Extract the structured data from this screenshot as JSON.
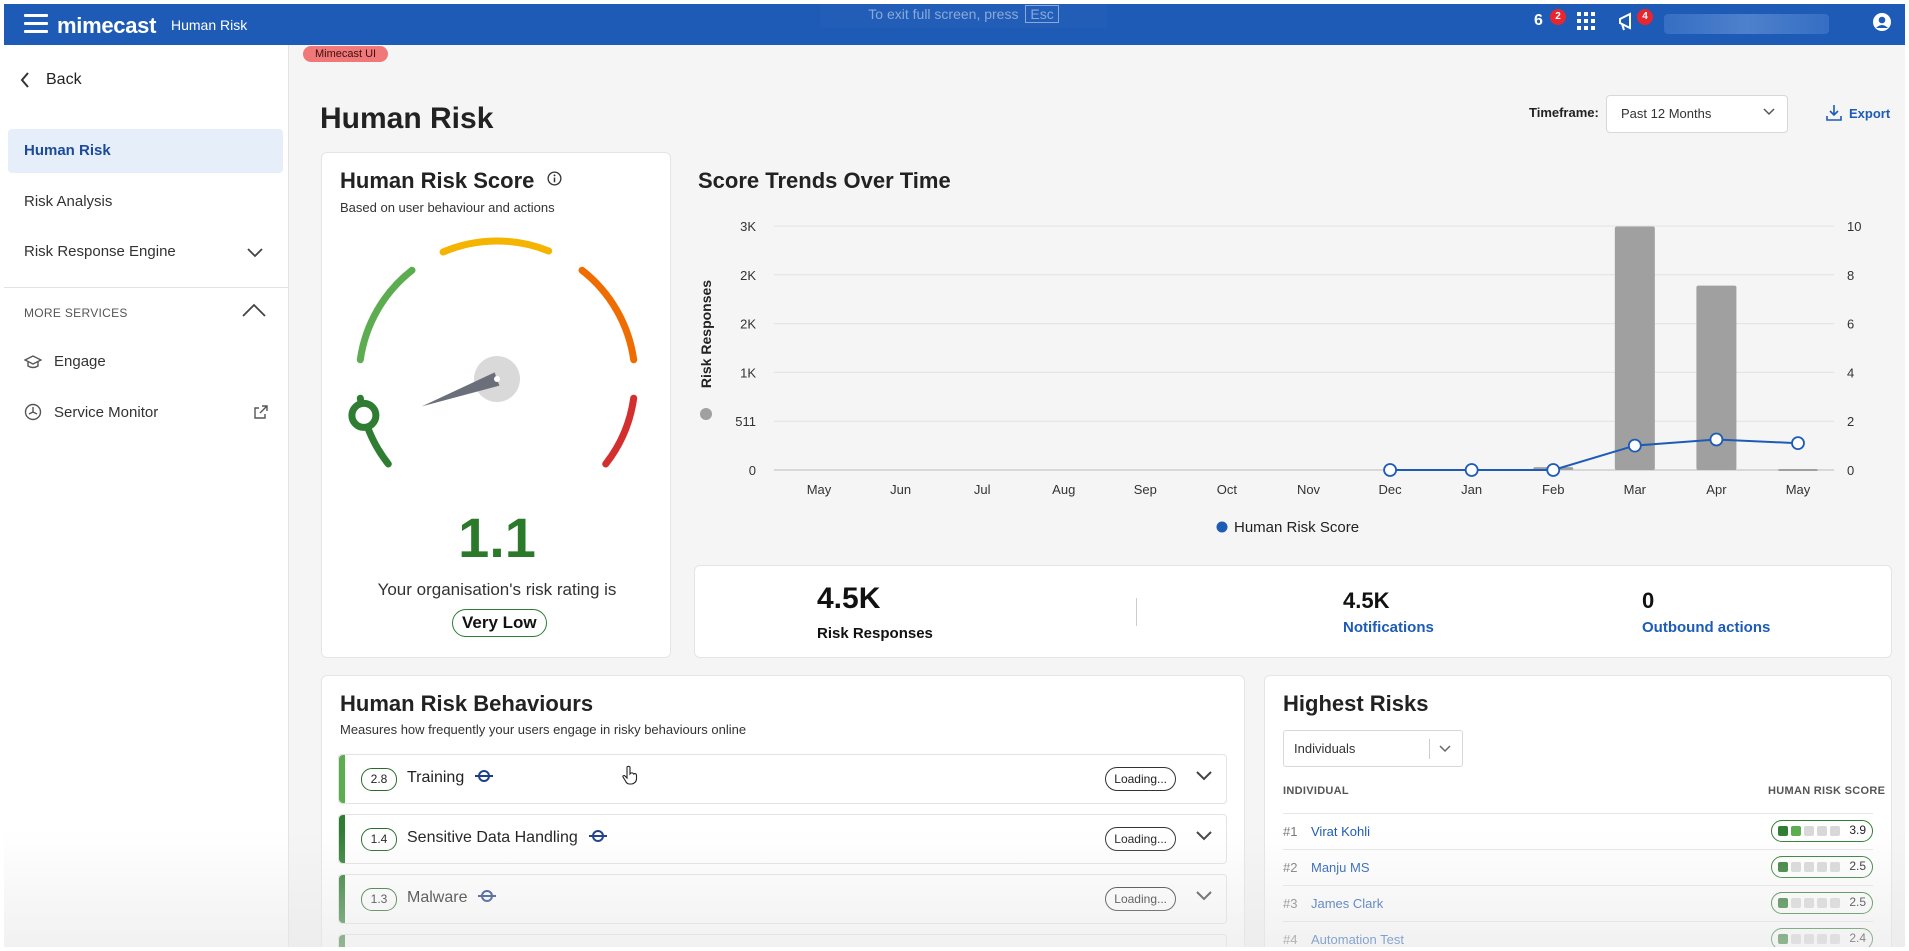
{
  "topbar": {
    "brand": "mimecast",
    "app_name": "Human Risk",
    "hint_text": "To exit full screen, press",
    "hint_key": "Esc",
    "icon1_text": "6",
    "icon1_badge": "2",
    "notifications_badge": "4"
  },
  "sidebar": {
    "back_label": "Back",
    "items": [
      {
        "label": "Human Risk"
      },
      {
        "label": "Risk Analysis"
      },
      {
        "label": "Risk Response Engine"
      }
    ],
    "section_label": "MORE SERVICES",
    "services": [
      {
        "label": "Engage"
      },
      {
        "label": "Service Monitor"
      }
    ]
  },
  "env_tag": "Mimecast UI",
  "page": {
    "title": "Human Risk",
    "timeframe_label": "Timeframe:",
    "timeframe_value": "Past 12 Months",
    "export_label": "Export"
  },
  "score_card": {
    "title": "Human Risk Score",
    "subtitle": "Based on user behaviour and actions",
    "score": "1.1",
    "score_value": 1.1,
    "caption": "Your organisation's risk rating is",
    "rating": "Very Low",
    "colors": {
      "low": "#2e7d32",
      "lowmid": "#5cad4f",
      "mid": "#f5b400",
      "midhigh": "#ef6c00",
      "high": "#d32f2f"
    }
  },
  "chart_data": {
    "type": "bar",
    "title": "Score Trends Over Time",
    "categories": [
      "May",
      "Jun",
      "Jul",
      "Aug",
      "Sep",
      "Oct",
      "Nov",
      "Dec",
      "Jan",
      "Feb",
      "Mar",
      "Apr",
      "May"
    ],
    "series": [
      {
        "name": "Risk Responses",
        "type": "bar",
        "axis": "left",
        "color": "#a0a0a0",
        "values": [
          0,
          0,
          0,
          0,
          0,
          0,
          0,
          0,
          0,
          30,
          2550,
          1930,
          10
        ]
      },
      {
        "name": "Human Risk Score",
        "type": "line",
        "axis": "right",
        "color": "#1d5bb6",
        "values": [
          null,
          null,
          null,
          null,
          null,
          null,
          null,
          0,
          0,
          0,
          1,
          1.25,
          1.1
        ]
      }
    ],
    "ylabel": "Risk Responses",
    "y_ticks": [
      "0",
      "511",
      "1K",
      "2K",
      "2K",
      "3K"
    ],
    "ylim": [
      0,
      2555
    ],
    "y2_ticks": [
      "0",
      "2",
      "4",
      "6",
      "8",
      "10"
    ],
    "y2lim": [
      0,
      10
    ],
    "legend": "Human Risk Score"
  },
  "stats": {
    "risk_responses_value": "4.5K",
    "risk_responses_label": "Risk Responses",
    "notifications_value": "4.5K",
    "notifications_label": "Notifications",
    "outbound_value": "0",
    "outbound_label": "Outbound actions"
  },
  "behaviours": {
    "title": "Human Risk Behaviours",
    "subtitle": "Measures how frequently your users engage in risky behaviours online",
    "items": [
      {
        "score": "2.8",
        "name": "Training",
        "status": "Loading...",
        "color": "#5cad4f"
      },
      {
        "score": "1.4",
        "name": "Sensitive Data Handling",
        "status": "Loading...",
        "color": "#2e7d32"
      },
      {
        "score": "1.3",
        "name": "Malware",
        "status": "Loading...",
        "color": "#2e7d32"
      }
    ]
  },
  "highest_risks": {
    "title": "Highest Risks",
    "filter_value": "Individuals",
    "col_individual": "INDIVIDUAL",
    "col_score": "HUMAN RISK SCORE",
    "rows": [
      {
        "rank": "#1",
        "name": "Virat Kohli",
        "score": "3.9",
        "level": 2
      },
      {
        "rank": "#2",
        "name": "Manju MS",
        "score": "2.5",
        "level": 1
      },
      {
        "rank": "#3",
        "name": "James Clark",
        "score": "2.5",
        "level": 1
      },
      {
        "rank": "#4",
        "name": "Automation Test",
        "score": "2.4",
        "level": 1
      }
    ]
  }
}
